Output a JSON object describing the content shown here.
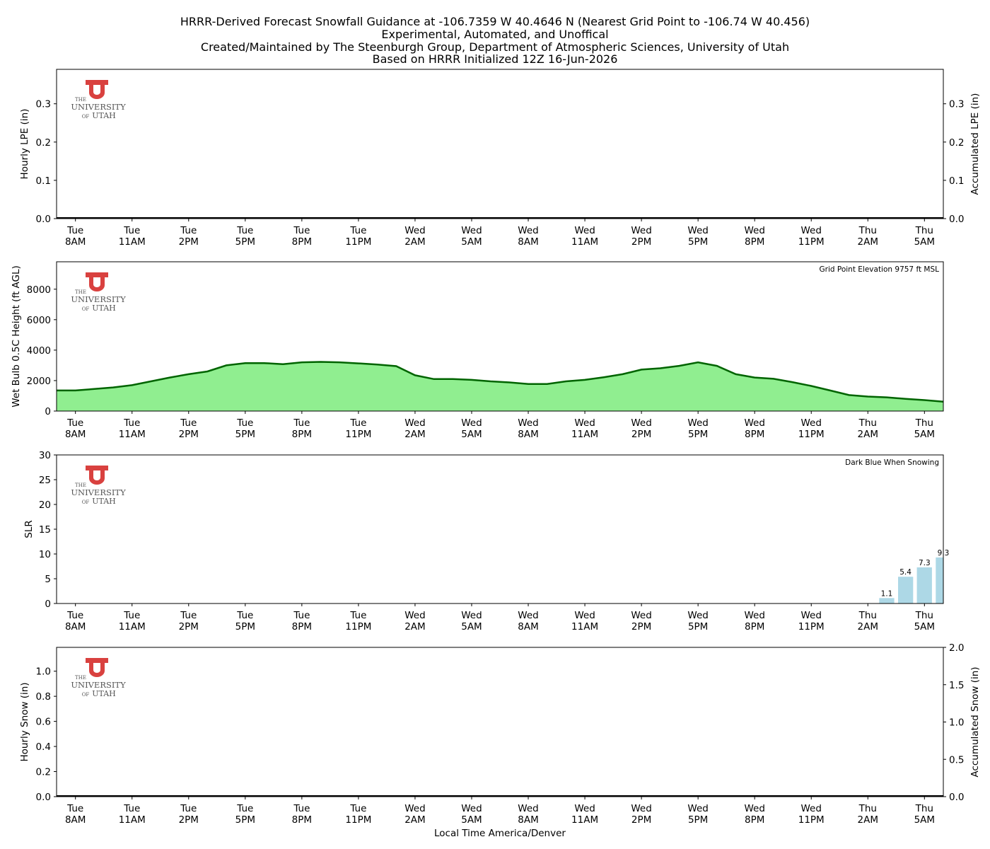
{
  "title_lines": [
    "HRRR-Derived Forecast Snowfall Guidance at -106.7359 W 40.4646 N (Nearest Grid Point to -106.74 W 40.456)",
    "Experimental, Automated, and Unoffical",
    "Created/Maintained by The Steenburgh Group, Department of Atmospheric Sciences, University of Utah",
    "Based on HRRR Initialized 12Z 16-Jun-2026"
  ],
  "xlabel": "Local Time America/Denver",
  "logo": {
    "line1": "THE",
    "line2": "UNIVERSITY",
    "line3a": "OF",
    "line3b": "UTAH",
    "color": "#d9413f"
  },
  "time_ticks": [
    {
      "day": "Tue",
      "time": "8AM"
    },
    {
      "day": "Tue",
      "time": "11AM"
    },
    {
      "day": "Tue",
      "time": "2PM"
    },
    {
      "day": "Tue",
      "time": "5PM"
    },
    {
      "day": "Tue",
      "time": "8PM"
    },
    {
      "day": "Tue",
      "time": "11PM"
    },
    {
      "day": "Wed",
      "time": "2AM"
    },
    {
      "day": "Wed",
      "time": "5AM"
    },
    {
      "day": "Wed",
      "time": "8AM"
    },
    {
      "day": "Wed",
      "time": "11AM"
    },
    {
      "day": "Wed",
      "time": "2PM"
    },
    {
      "day": "Wed",
      "time": "5PM"
    },
    {
      "day": "Wed",
      "time": "8PM"
    },
    {
      "day": "Wed",
      "time": "11PM"
    },
    {
      "day": "Thu",
      "time": "2AM"
    },
    {
      "day": "Thu",
      "time": "5AM"
    }
  ],
  "chart_data": [
    {
      "id": "lpe",
      "type": "bar",
      "ylabel": "Hourly LPE (in)",
      "ylabel_right": "Accumulated LPE (in)",
      "xlim": [
        -1,
        46
      ],
      "ylim": [
        0,
        0.39
      ],
      "yticks": [
        "0.0",
        "0.1",
        "0.2",
        "0.3"
      ],
      "yticks_right": [
        "0.0",
        "0.1",
        "0.2",
        "0.3"
      ],
      "hourly": [],
      "accumulated": 0
    },
    {
      "id": "wetbulb",
      "type": "area",
      "ylabel": "Wet Bulb 0.5C Height (ft AGL)",
      "note": "Grid Point Elevation 9757 ft MSL",
      "fill_color": "#90ee90",
      "line_color": "#006400",
      "xlim": [
        -1,
        46
      ],
      "ylim": [
        0,
        9800
      ],
      "yticks": [
        "0",
        "2000",
        "4000",
        "6000",
        "8000"
      ],
      "x": [
        -1,
        0,
        1,
        2,
        3,
        4,
        5,
        6,
        7,
        8,
        9,
        10,
        11,
        12,
        13,
        14,
        15,
        16,
        17,
        18,
        19,
        20,
        21,
        22,
        23,
        24,
        25,
        26,
        27,
        28,
        29,
        30,
        31,
        32,
        33,
        34,
        35,
        36,
        37,
        38,
        39,
        40,
        41,
        42,
        43,
        44,
        45,
        46
      ],
      "y": [
        1350,
        1350,
        1450,
        1550,
        1700,
        1950,
        2200,
        2420,
        2600,
        3000,
        3150,
        3150,
        3080,
        3200,
        3230,
        3200,
        3130,
        3050,
        2950,
        2350,
        2100,
        2100,
        2050,
        1950,
        1880,
        1780,
        1780,
        1950,
        2050,
        2220,
        2420,
        2720,
        2810,
        2970,
        3200,
        2970,
        2420,
        2200,
        2120,
        1900,
        1650,
        1350,
        1050,
        950,
        900,
        800,
        720,
        620
      ]
    },
    {
      "id": "slr",
      "type": "bar",
      "ylabel": "SLR",
      "note": "Dark Blue When Snowing",
      "bar_color": "#add8e6",
      "xlim": [
        -1,
        46
      ],
      "ylim": [
        0,
        30
      ],
      "yticks": [
        "0",
        "5",
        "10",
        "15",
        "20",
        "25",
        "30"
      ],
      "x": [
        43,
        44,
        45,
        46
      ],
      "values": [
        1.1,
        5.4,
        7.3,
        9.3
      ],
      "labels": [
        "1.1",
        "5.4",
        "7.3",
        "9.3"
      ]
    },
    {
      "id": "snow",
      "type": "bar",
      "ylabel": "Hourly Snow (in)",
      "ylabel_right": "Accumulated Snow (in)",
      "xlim": [
        -1,
        46
      ],
      "ylim": [
        0,
        1.19
      ],
      "yticks": [
        "0.0",
        "0.2",
        "0.4",
        "0.6",
        "0.8",
        "1.0"
      ],
      "ylim_right": [
        0,
        2
      ],
      "yticks_right": [
        "0.0",
        "0.5",
        "1.0",
        "1.5",
        "2.0"
      ],
      "hourly": [],
      "accumulated": 0
    }
  ]
}
